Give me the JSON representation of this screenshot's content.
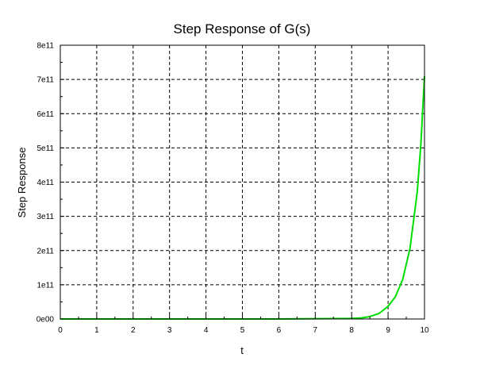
{
  "chart_data": {
    "type": "line",
    "title": "Step Response of G(s)",
    "xlabel": "t",
    "ylabel": "Step Response",
    "xlim": [
      0,
      10
    ],
    "ylim": [
      0,
      800000000000
    ],
    "x_ticks": [
      0,
      1,
      2,
      3,
      4,
      5,
      6,
      7,
      8,
      9,
      10
    ],
    "x_tick_labels": [
      "0",
      "1",
      "2",
      "3",
      "4",
      "5",
      "6",
      "7",
      "8",
      "9",
      "10"
    ],
    "y_ticks": [
      0,
      100000000000,
      200000000000,
      300000000000,
      400000000000,
      500000000000,
      600000000000,
      700000000000,
      800000000000
    ],
    "y_tick_labels": [
      "0e00",
      "1e11",
      "2e11",
      "3e11",
      "4e11",
      "5e11",
      "6e11",
      "7e11",
      "8e11"
    ],
    "grid": true,
    "series": [
      {
        "color": "#00dd00",
        "x": [
          0,
          1,
          2,
          3,
          4,
          5,
          6,
          7,
          7.5,
          8,
          8.25,
          8.5,
          8.75,
          9,
          9.2,
          9.4,
          9.6,
          9.8,
          9.9,
          10
        ],
        "y": [
          0,
          0,
          0,
          0,
          0,
          10000000,
          100000000,
          1000000000,
          1300000000,
          1800000000,
          2900000000,
          7000000000,
          16000000000,
          37000000000,
          65000000000,
          115000000000,
          205000000000,
          370000000000,
          510000000000,
          710000000000
        ]
      }
    ]
  }
}
